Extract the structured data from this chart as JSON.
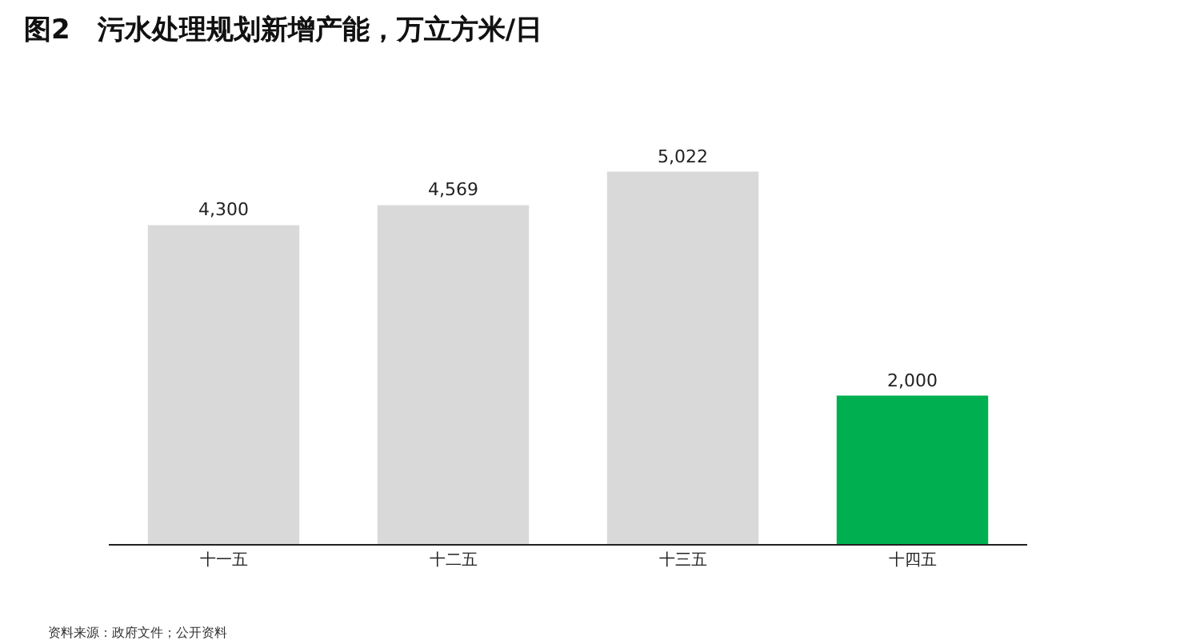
{
  "chart_data": {
    "type": "bar",
    "title": "图2　污水处理规划新增产能，万立方米/日",
    "categories": [
      "十一五",
      "十二五",
      "十三五",
      "十四五"
    ],
    "values": [
      4300,
      4569,
      5022,
      2000
    ],
    "value_labels": [
      "4,300",
      "4,569",
      "5,022",
      "2,000"
    ],
    "colors": [
      "#d9d9d9",
      "#d9d9d9",
      "#d9d9d9",
      "#00b050"
    ],
    "legend": false,
    "annotations": [
      "资料来源：政府文件；公开资料"
    ]
  }
}
